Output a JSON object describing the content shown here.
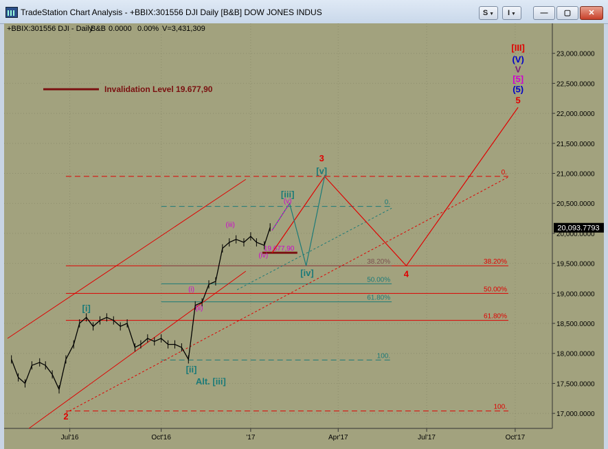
{
  "window": {
    "title": "TradeStation Chart Analysis - +BBIX:301556 DJI Daily [B&B] DOW JONES INDUS",
    "buttons": {
      "s": "S",
      "i": "I",
      "minimize": "—",
      "maximize": "▢",
      "close": "✕"
    }
  },
  "header": {
    "symbol_info": "+BBIX:301556 DJI - Daily",
    "indicator": "B&B",
    "value": "0.0000",
    "pct": "0.00%",
    "volume": "V=3,431,309"
  },
  "colors": {
    "plot_bg": "#a2a27e",
    "panel_bg": "#c8d4e4",
    "price": "#000000",
    "red": "#e00000",
    "teal": "#1b7a78",
    "magenta": "#d000d0",
    "maroon": "#7a1010",
    "blue": "#0000c8"
  },
  "chart_data": {
    "type": "line",
    "title": "DJI Daily Elliott Wave Count",
    "ylim": [
      16750,
      23500
    ],
    "y_ticks": [
      "23,000.0000",
      "22,500.0000",
      "22,000.0000",
      "21,500.0000",
      "21,000.0000",
      "20,500.0000",
      "20,000.0000",
      "19,500.0000",
      "19,000.0000",
      "18,500.0000",
      "18,000.0000",
      "17,500.0000",
      "17,000.0000"
    ],
    "x_ticks": [
      "Jul'16",
      "Oct'16",
      "'17",
      "Apr'17",
      "Jul'17",
      "Oct'17"
    ],
    "last_price": "20,093.7793",
    "price_series": {
      "x": [
        "2016-05-02",
        "2016-05-09",
        "2016-05-16",
        "2016-05-23",
        "2016-05-31",
        "2016-06-06",
        "2016-06-13",
        "2016-06-20",
        "2016-06-27",
        "2016-07-05",
        "2016-07-11",
        "2016-07-18",
        "2016-07-25",
        "2016-08-01",
        "2016-08-08",
        "2016-08-15",
        "2016-08-22",
        "2016-08-29",
        "2016-09-06",
        "2016-09-12",
        "2016-09-19",
        "2016-09-26",
        "2016-10-03",
        "2016-10-10",
        "2016-10-17",
        "2016-10-24",
        "2016-10-31",
        "2016-11-07",
        "2016-11-14",
        "2016-11-21",
        "2016-11-28",
        "2016-12-05",
        "2016-12-12",
        "2016-12-19",
        "2016-12-27",
        "2017-01-03",
        "2017-01-09",
        "2017-01-17",
        "2017-01-23"
      ],
      "close": [
        17900,
        17600,
        17500,
        17800,
        17850,
        17800,
        17650,
        17400,
        17900,
        18150,
        18500,
        18600,
        18450,
        18550,
        18600,
        18550,
        18450,
        18500,
        18100,
        18150,
        18250,
        18200,
        18250,
        18150,
        18150,
        18100,
        17900,
        18800,
        18850,
        19150,
        19200,
        19750,
        19850,
        19900,
        19850,
        19950,
        19850,
        19800,
        20100
      ]
    },
    "wave_paths": [
      {
        "name": "red projection",
        "color": "#e00000",
        "points": [
          [
            "2017-01-25",
            19677.9
          ],
          [
            "2017-03-20",
            20950
          ],
          [
            "2017-06-12",
            19460
          ],
          [
            "2017-10-05",
            22100
          ]
        ]
      },
      {
        "name": "teal projection",
        "color": "#1b7a78",
        "points": [
          [
            "2017-01-25",
            20050
          ],
          [
            "2017-02-12",
            20500
          ],
          [
            "2017-03-01",
            19460
          ],
          [
            "2017-03-20",
            20950
          ]
        ]
      },
      {
        "name": "magenta subwave",
        "color": "#d000d0",
        "points": [
          [
            "2017-01-25",
            20050
          ],
          [
            "2017-02-12",
            20500
          ]
        ]
      }
    ],
    "channels": [
      {
        "name": "red channel upper",
        "color": "#e00000",
        "style": "solid",
        "points": [
          [
            "2016-04-28",
            18250
          ],
          [
            "2016-12-29",
            20900
          ]
        ]
      },
      {
        "name": "red channel lower",
        "color": "#e00000",
        "style": "solid",
        "points": [
          [
            "2016-05-20",
            16750
          ],
          [
            "2016-12-29",
            19370
          ]
        ]
      },
      {
        "name": "red dotted trend",
        "color": "#e00000",
        "style": "dotted",
        "points": [
          [
            "2016-06-27",
            17010
          ],
          [
            "2017-09-25",
            20940
          ]
        ]
      },
      {
        "name": "teal dotted trend",
        "color": "#1b7a78",
        "style": "dotted",
        "points": [
          [
            "2016-12-20",
            19060
          ],
          [
            "2017-05-28",
            20420
          ]
        ]
      }
    ],
    "horizontal_levels": [
      {
        "name": "red 0",
        "label": "0.",
        "value": 20950,
        "color": "#e00000",
        "style": "dashed",
        "from": "2016-06-27",
        "to": "2017-09-25"
      },
      {
        "name": "red 38.20%",
        "label": "38.20%",
        "value": 19460,
        "color": "#e00000",
        "style": "solid",
        "from": "2016-06-27",
        "to": "2017-09-25"
      },
      {
        "name": "red 50.00%",
        "label": "50.00%",
        "value": 19000,
        "color": "#e00000",
        "style": "solid",
        "from": "2016-06-27",
        "to": "2017-09-25"
      },
      {
        "name": "red 61.80%",
        "label": "61.80%",
        "value": 18550,
        "color": "#e00000",
        "style": "solid",
        "from": "2016-06-27",
        "to": "2017-09-25"
      },
      {
        "name": "red 100",
        "label": "100.",
        "value": 17040,
        "color": "#e00000",
        "style": "dashed",
        "from": "2016-06-27",
        "to": "2017-09-25"
      },
      {
        "name": "teal 0",
        "label": "0.",
        "value": 20450,
        "color": "#1b7a78",
        "style": "dashed",
        "from": "2016-10-03",
        "to": "2017-05-28"
      },
      {
        "name": "teal 38.20%",
        "label": "38.20%",
        "value": 19460,
        "color": "#7a4f4f",
        "style": "solid",
        "from": "2016-10-03",
        "to": "2017-05-28"
      },
      {
        "name": "teal 50.00%",
        "label": "50.00%",
        "value": 19160,
        "color": "#1b7a78",
        "style": "solid",
        "from": "2016-10-03",
        "to": "2017-05-28"
      },
      {
        "name": "teal 61.80%",
        "label": "61.80%",
        "value": 18860,
        "color": "#1b7a78",
        "style": "solid",
        "from": "2016-10-03",
        "to": "2017-05-28"
      },
      {
        "name": "teal 100",
        "label": "100.",
        "value": 17890,
        "color": "#1b7a78",
        "style": "dashed",
        "from": "2016-10-03",
        "to": "2017-05-28"
      },
      {
        "name": "invalidation",
        "label": "19.677,90",
        "value": 19677.9,
        "color": "#7a1010",
        "style": "thick",
        "from": "2017-01-15",
        "to": "2017-02-20"
      }
    ],
    "wave_labels": [
      {
        "text": "2",
        "x": "2016-06-27",
        "y": 16900,
        "color": "#e00000",
        "bold": true
      },
      {
        "text": "[i]",
        "x": "2016-07-18",
        "y": 18700,
        "color": "#1b7a78",
        "bold": true
      },
      {
        "text": "[ii]",
        "x": "2016-11-03",
        "y": 17680,
        "color": "#1b7a78",
        "bold": true
      },
      {
        "text": "Alt. [iii]",
        "x": "2016-11-23",
        "y": 17480,
        "color": "#1b7a78",
        "bold": true
      },
      {
        "text": "(i)",
        "x": "2016-11-03",
        "y": 19030,
        "color": "#d000d0",
        "bold": false
      },
      {
        "text": "(ii)",
        "x": "2016-11-11",
        "y": 18720,
        "color": "#d000d0",
        "bold": false
      },
      {
        "text": "(iii)",
        "x": "2016-12-13",
        "y": 20110,
        "color": "#d000d0",
        "bold": false
      },
      {
        "text": "(iv)",
        "x": "2017-01-16",
        "y": 19600,
        "color": "#d000d0",
        "bold": false
      },
      {
        "text": "(v)",
        "x": "2017-02-10",
        "y": 20500,
        "color": "#d000d0",
        "bold": false
      },
      {
        "text": "[iii]",
        "x": "2017-02-10",
        "y": 20600,
        "color": "#1b7a78",
        "bold": true
      },
      {
        "text": "[iv]",
        "x": "2017-03-02",
        "y": 19290,
        "color": "#1b7a78",
        "bold": true
      },
      {
        "text": "[v]",
        "x": "2017-03-17",
        "y": 20990,
        "color": "#1b7a78",
        "bold": true
      },
      {
        "text": "3",
        "x": "2017-03-17",
        "y": 21200,
        "color": "#e00000",
        "bold": true
      },
      {
        "text": "4",
        "x": "2017-06-12",
        "y": 19270,
        "color": "#e00000",
        "bold": true
      },
      {
        "text": "5",
        "x": "2017-10-05",
        "y": 22170,
        "color": "#e00000",
        "bold": true
      },
      {
        "text": "(5)",
        "x": "2017-10-05",
        "y": 22350,
        "color": "#0000c8",
        "bold": true
      },
      {
        "text": "[5]",
        "x": "2017-10-05",
        "y": 22520,
        "color": "#d000d0",
        "bold": true
      },
      {
        "text": "V",
        "x": "2017-10-05",
        "y": 22680,
        "color": "#7a1d7a",
        "bold": true
      },
      {
        "text": "(V)",
        "x": "2017-10-05",
        "y": 22850,
        "color": "#0000c8",
        "bold": true
      },
      {
        "text": "[III]",
        "x": "2017-10-05",
        "y": 23040,
        "color": "#e00000",
        "bold": true
      }
    ],
    "annotation": {
      "text": "Invalidation Level 19.677,90",
      "color": "#7a1010"
    }
  }
}
